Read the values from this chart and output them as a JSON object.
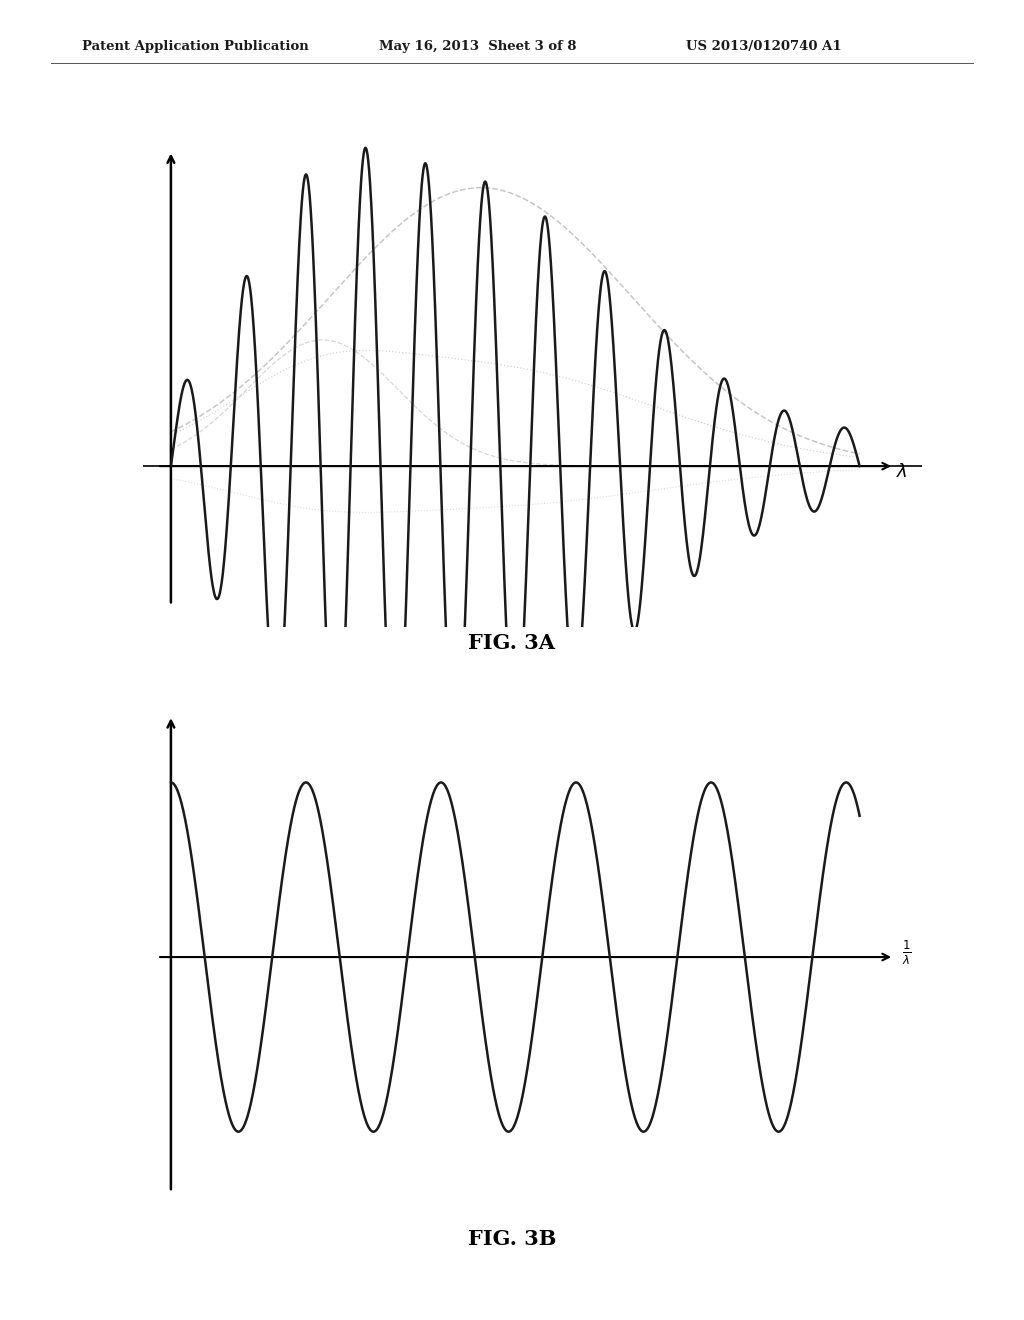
{
  "header_left": "Patent Application Publication",
  "header_mid": "May 16, 2013  Sheet 3 of 8",
  "header_right": "US 2013/0120740 A1",
  "fig3a_label": "FIG. 3A",
  "fig3b_label": "FIG. 3B",
  "lambda_label": "λ",
  "background_color": "#ffffff",
  "dark_line": "#1a1a1a",
  "gray_line": "#aaaaaa",
  "dotted_line": "#bbbbbb"
}
